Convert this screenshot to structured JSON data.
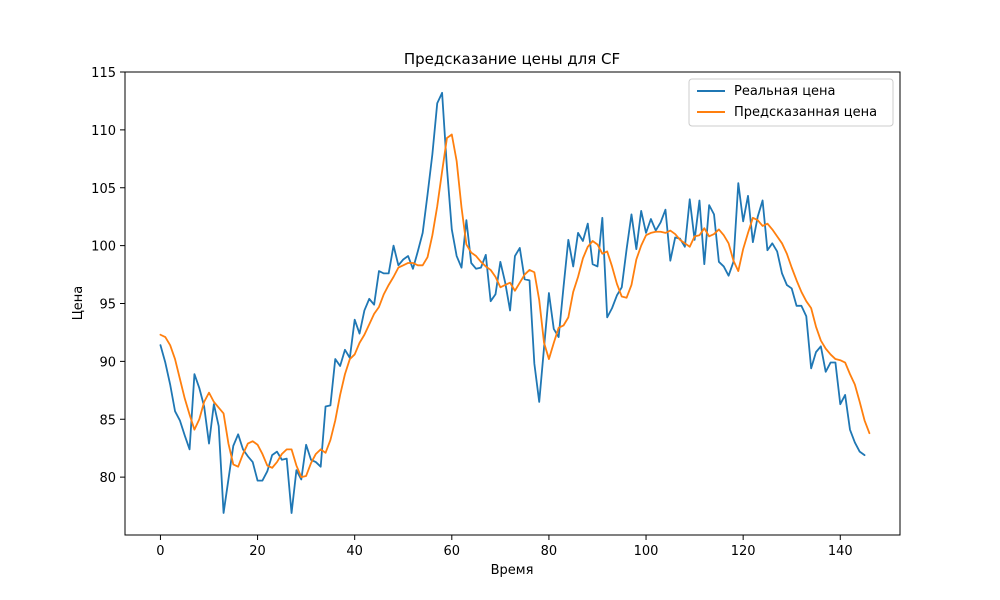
{
  "chart_data": {
    "type": "line",
    "title": "Предсказание цены для CF",
    "xlabel": "Время",
    "ylabel": "Цена",
    "xlim": [
      -7.3,
      152.3
    ],
    "ylim": [
      75.0,
      115.0
    ],
    "xticks": [
      0,
      20,
      40,
      60,
      80,
      100,
      120,
      140
    ],
    "yticks": [
      80,
      85,
      90,
      95,
      100,
      105,
      110,
      115
    ],
    "legend_position": "top-right",
    "grid": false,
    "series": [
      {
        "name": "Реальная цена",
        "color": "#1f77b4",
        "values": [
          91.4,
          89.9,
          88.0,
          85.7,
          84.9,
          83.6,
          82.4,
          88.9,
          87.7,
          86.1,
          82.9,
          86.3,
          84.4,
          76.9,
          79.8,
          82.7,
          83.7,
          82.4,
          81.8,
          81.3,
          79.7,
          79.7,
          80.5,
          81.9,
          82.2,
          81.5,
          81.6,
          76.9,
          80.6,
          79.8,
          82.8,
          81.5,
          81.3,
          80.9,
          86.1,
          86.2,
          90.2,
          89.6,
          91.0,
          90.3,
          93.6,
          92.4,
          94.4,
          95.4,
          94.9,
          97.8,
          97.6,
          97.6,
          100.0,
          98.3,
          98.8,
          99.1,
          98.0,
          99.5,
          101.1,
          104.4,
          107.9,
          112.3,
          113.2,
          106.7,
          101.4,
          99.1,
          98.1,
          102.2,
          98.5,
          98.0,
          98.1,
          99.2,
          95.2,
          95.8,
          98.6,
          96.8,
          94.4,
          99.1,
          99.8,
          97.1,
          97.0,
          89.8,
          86.5,
          91.2,
          95.9,
          92.8,
          92.1,
          96.4,
          100.5,
          98.2,
          101.1,
          100.4,
          101.9,
          98.4,
          98.2,
          102.4,
          93.8,
          94.6,
          95.7,
          96.4,
          99.7,
          102.7,
          99.7,
          103.0,
          101.1,
          102.3,
          101.3,
          102.0,
          103.1,
          98.7,
          100.7,
          100.6,
          99.9,
          104.0,
          100.5,
          103.9,
          98.4,
          103.5,
          102.7,
          98.6,
          98.2,
          97.4,
          98.6,
          105.4,
          102.1,
          104.3,
          100.3,
          102.5,
          103.9,
          99.6,
          100.2,
          99.5,
          97.6,
          96.6,
          96.3,
          94.8,
          94.8,
          93.9,
          89.4,
          90.8,
          91.3,
          89.1,
          89.9,
          89.9,
          86.3,
          87.1,
          84.1,
          83.0,
          82.2,
          81.9
        ]
      },
      {
        "name": "Предсказанная цена",
        "color": "#ff7f0e",
        "values": [
          92.3,
          92.1,
          91.4,
          90.2,
          88.5,
          86.8,
          85.4,
          84.1,
          85.0,
          86.5,
          87.3,
          86.5,
          86.0,
          85.5,
          82.9,
          81.1,
          80.9,
          82.0,
          82.9,
          83.1,
          82.8,
          82.0,
          81.0,
          80.8,
          81.3,
          82.0,
          82.4,
          82.4,
          81.0,
          80.0,
          80.1,
          81.2,
          82.0,
          82.4,
          82.1,
          83.2,
          84.9,
          87.1,
          88.9,
          90.2,
          90.6,
          91.6,
          92.3,
          93.2,
          94.1,
          94.7,
          95.8,
          96.6,
          97.3,
          98.1,
          98.3,
          98.5,
          98.5,
          98.3,
          98.3,
          99.0,
          100.9,
          103.4,
          106.4,
          109.3,
          109.6,
          107.3,
          103.3,
          100.1,
          99.4,
          99.1,
          98.6,
          98.2,
          97.9,
          97.3,
          96.4,
          96.6,
          96.8,
          96.1,
          96.8,
          97.5,
          97.9,
          97.7,
          95.3,
          91.6,
          90.2,
          91.6,
          92.9,
          93.1,
          93.8,
          96.0,
          97.3,
          98.9,
          99.9,
          100.4,
          100.1,
          99.3,
          99.5,
          98.2,
          96.7,
          95.6,
          95.5,
          96.6,
          98.8,
          100.0,
          100.9,
          101.1,
          101.2,
          101.2,
          101.1,
          101.3,
          101.0,
          100.5,
          100.2,
          99.9,
          100.8,
          100.9,
          101.5,
          100.8,
          101.0,
          101.4,
          100.9,
          100.2,
          98.7,
          97.8,
          99.7,
          101.1,
          102.4,
          102.2,
          101.7,
          101.9,
          101.4,
          100.8,
          100.2,
          99.3,
          98.1,
          97.0,
          96.0,
          95.2,
          94.6,
          93.0,
          91.8,
          91.1,
          90.6,
          90.2,
          90.1,
          89.9,
          88.9,
          88.0,
          86.5,
          84.9,
          83.8
        ]
      }
    ]
  }
}
